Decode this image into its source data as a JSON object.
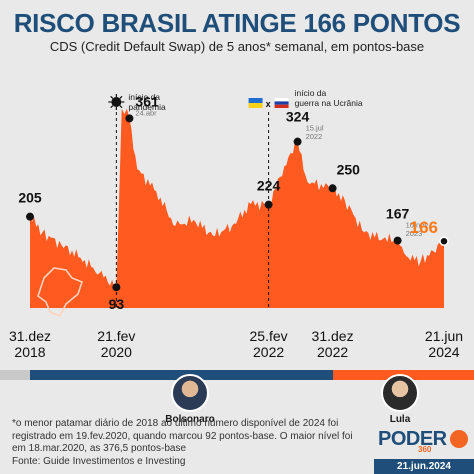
{
  "title": "RISCO BRASIL ATINGE 166 PONTOS",
  "subtitle": "CDS (Credit Default Swap) de 5 anos* semanal, em pontos-base",
  "colors": {
    "title": "#1e4e79",
    "area": "#ff5a1f",
    "highlight": "#ff7a1a",
    "bolsonaro_period": "#1e4e79",
    "lula_period": "#ff5a1f"
  },
  "chart_data": {
    "type": "area",
    "series": [
      {
        "x": [
          "2018-12-31",
          "2019-03-01",
          "2019-06-01",
          "2019-09-01",
          "2019-12-01",
          "2020-02-21",
          "2020-03-18",
          "2020-04-24",
          "2020-06-01",
          "2020-09-01",
          "2020-12-01",
          "2021-03-01",
          "2021-06-01",
          "2021-09-01",
          "2021-12-01",
          "2022-02-25",
          "2022-04-01",
          "2022-06-01",
          "2022-07-15",
          "2022-09-01",
          "2022-12-31",
          "2023-03-01",
          "2023-06-01",
          "2023-09-01",
          "2023-11-10",
          "2024-01-01",
          "2024-03-01",
          "2024-05-01",
          "2024-06-21"
        ],
        "values": [
          205,
          180,
          160,
          140,
          115,
          93,
          376.5,
          361,
          280,
          245,
          190,
          200,
          175,
          190,
          225,
          224,
          250,
          300,
          324,
          260,
          250,
          230,
          180,
          170,
          167,
          140,
          135,
          150,
          166
        ]
      }
    ],
    "annotations": [
      {
        "value": "205",
        "date_label": ""
      },
      {
        "value": "93",
        "date_label": ""
      },
      {
        "value": "361",
        "date_label": "24.abr"
      },
      {
        "value": "224",
        "date_label": ""
      },
      {
        "value": "324",
        "date_label": "15.jul 2022"
      },
      {
        "value": "250",
        "date_label": ""
      },
      {
        "value": "167",
        "date_label": "10.nov 2023"
      },
      {
        "value": "166",
        "date_label": ""
      }
    ],
    "events": [
      {
        "label": "início da pandemia",
        "date": "2020-02-21"
      },
      {
        "label": "início da guerra na Ucrânia",
        "date": "2022-02-25"
      }
    ],
    "x_ticks": [
      {
        "day": "31.dez",
        "year": "2018"
      },
      {
        "day": "21.fev",
        "year": "2020"
      },
      {
        "day": "25.fev",
        "year": "2022"
      },
      {
        "day": "31.dez",
        "year": "2022"
      },
      {
        "day": "21.jun",
        "year": "2024"
      }
    ],
    "grid": false
  },
  "presidents": [
    {
      "name": "Bolsonaro"
    },
    {
      "name": "Lula"
    }
  ],
  "footnote": "*o menor patamar diário de 2018 ao último número disponível de 2024 foi registrado em 19.fev.2020, quando marcou 92 pontos-base. O maior nível foi em 18.mar.2020, as 376,5 pontos-base",
  "source": "Fonte: Guide Investimentos e Investing",
  "brand": {
    "name": "PODER",
    "suffix": "360"
  },
  "date": "21.jun.2024"
}
